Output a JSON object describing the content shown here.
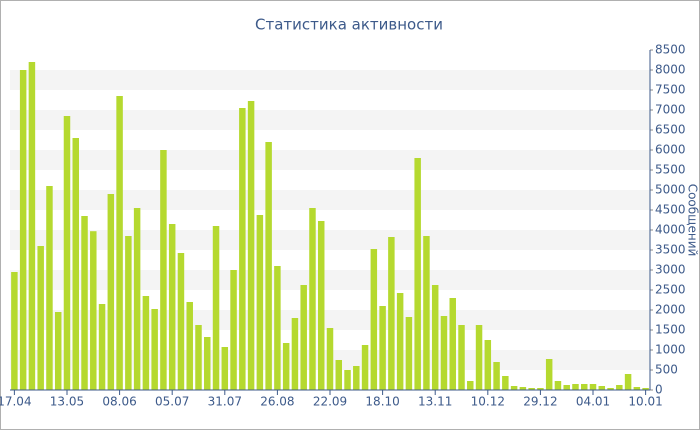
{
  "chart_data": {
    "type": "bar",
    "title": "Статистика активности",
    "y_label": "Сообщений",
    "categories": [
      "17.04",
      null,
      null,
      null,
      null,
      null,
      "13.05",
      null,
      null,
      null,
      null,
      null,
      "08.06",
      null,
      null,
      null,
      null,
      null,
      "05.07",
      null,
      null,
      null,
      null,
      null,
      "31.07",
      null,
      null,
      null,
      null,
      null,
      "26.08",
      null,
      null,
      null,
      null,
      null,
      "22.09",
      null,
      null,
      null,
      null,
      null,
      "18.10",
      null,
      null,
      null,
      null,
      null,
      "13.11",
      null,
      null,
      null,
      null,
      null,
      "10.12",
      null,
      null,
      null,
      null,
      null,
      "29.12",
      null,
      null,
      null,
      null,
      null,
      "04.01",
      null,
      null,
      null,
      null,
      null,
      "10.01"
    ],
    "values": [
      2950,
      8000,
      8200,
      3600,
      5100,
      1950,
      6850,
      6300,
      4350,
      3970,
      2150,
      4900,
      7350,
      3850,
      4550,
      2350,
      2025,
      6000,
      4150,
      3425,
      2200,
      1625,
      1325,
      4100,
      1075,
      3000,
      7050,
      7225,
      4375,
      6200,
      3100,
      1175,
      1800,
      2625,
      4550,
      4225,
      1550,
      750,
      500,
      600,
      1125,
      3525,
      2100,
      3825,
      2425,
      1825,
      5800,
      3850,
      2625,
      1850,
      2300,
      1625,
      225,
      1625,
      1250,
      700,
      350,
      100,
      75,
      50,
      50,
      775,
      225,
      125,
      150,
      150,
      150,
      100,
      50,
      125,
      400,
      75,
      50
    ],
    "color": "#b5d92f",
    "ylim": [
      0,
      8500
    ],
    "yticks": [
      0,
      500,
      1000,
      1500,
      2000,
      2500,
      3000,
      3500,
      4000,
      4500,
      5000,
      5500,
      6000,
      6500,
      7000,
      7500,
      8000,
      8500
    ],
    "grid": true
  }
}
